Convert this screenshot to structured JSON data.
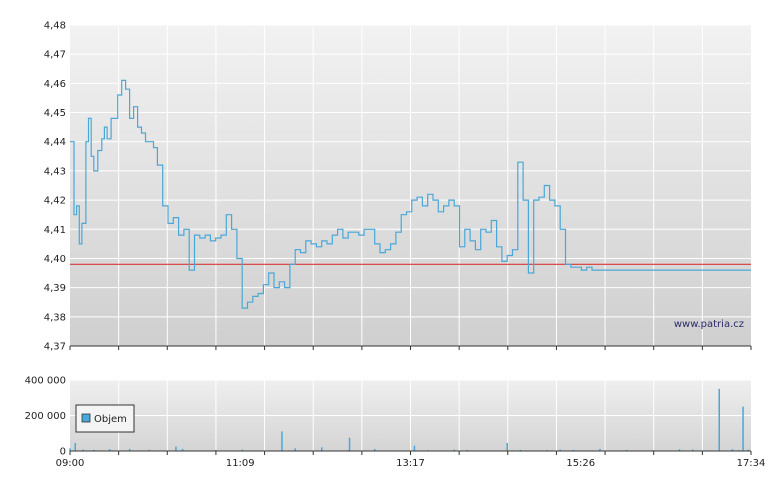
{
  "chart_data": [
    {
      "type": "line",
      "title": "",
      "ylim": [
        4.37,
        4.48
      ],
      "y_ticks": [
        "4,37",
        "4,38",
        "4,39",
        "4,40",
        "4,41",
        "4,42",
        "4,43",
        "4,44",
        "4,45",
        "4,46",
        "4,47",
        "4,48"
      ],
      "x_tick_labels": [
        "09:00",
        "11:09",
        "13:17",
        "15:26",
        "17:34"
      ],
      "reference_line": {
        "value": 4.398,
        "color": "#d83a3a"
      },
      "watermark": "www.patria.cz",
      "series_color": "#4aa8d8",
      "x_minutes_range": [
        0,
        514
      ],
      "series": [
        {
          "x": [
            0,
            3,
            5,
            7,
            9,
            12,
            14,
            16,
            18,
            21,
            24,
            26,
            28,
            31,
            33,
            36,
            39,
            42,
            45,
            48,
            51,
            54,
            57,
            60,
            63,
            66,
            70,
            74,
            78,
            82,
            86,
            90,
            94,
            98,
            102,
            106,
            110,
            114,
            118,
            122,
            126,
            130,
            134,
            138,
            142,
            146,
            150,
            154,
            158,
            162,
            166,
            170,
            174,
            178,
            182,
            186,
            190,
            194,
            198,
            202,
            206,
            210,
            214,
            218,
            222,
            226,
            230,
            234,
            238,
            242,
            246,
            250,
            254,
            258,
            262,
            266,
            270,
            274,
            278,
            282,
            286,
            290,
            294,
            298,
            302,
            306,
            310,
            314,
            318,
            322,
            326,
            330,
            334,
            338,
            342,
            346,
            350,
            354,
            358,
            362,
            366,
            370,
            374,
            378,
            382,
            386,
            390,
            394,
            398,
            402,
            406,
            410,
            414,
            418,
            422,
            426,
            430,
            434,
            438,
            442,
            446,
            450,
            454,
            458,
            462,
            466,
            470,
            474,
            478,
            482,
            486,
            490,
            494,
            498,
            502,
            506,
            510,
            514
          ],
          "y": [
            4.44,
            4.415,
            4.418,
            4.405,
            4.412,
            4.44,
            4.448,
            4.435,
            4.43,
            4.437,
            4.441,
            4.445,
            4.441,
            4.448,
            4.448,
            4.456,
            4.461,
            4.458,
            4.448,
            4.452,
            4.445,
            4.443,
            4.44,
            4.44,
            4.438,
            4.432,
            4.418,
            4.412,
            4.414,
            4.408,
            4.41,
            4.396,
            4.408,
            4.407,
            4.408,
            4.406,
            4.407,
            4.408,
            4.415,
            4.41,
            4.4,
            4.383,
            4.385,
            4.387,
            4.388,
            4.391,
            4.395,
            4.39,
            4.392,
            4.39,
            4.398,
            4.403,
            4.402,
            4.406,
            4.405,
            4.404,
            4.406,
            4.405,
            4.408,
            4.41,
            4.407,
            4.409,
            4.409,
            4.408,
            4.41,
            4.41,
            4.405,
            4.402,
            4.403,
            4.405,
            4.409,
            4.415,
            4.416,
            4.42,
            4.421,
            4.418,
            4.422,
            4.42,
            4.416,
            4.418,
            4.42,
            4.418,
            4.404,
            4.41,
            4.406,
            4.403,
            4.41,
            4.409,
            4.413,
            4.404,
            4.399,
            4.401,
            4.403,
            4.433,
            4.42,
            4.395,
            4.42,
            4.421,
            4.425,
            4.42,
            4.418,
            4.41,
            4.398,
            4.397,
            4.397,
            4.396,
            4.397,
            4.396,
            4.396,
            4.396,
            4.396,
            4.396,
            4.396,
            4.396,
            4.396,
            4.396,
            4.396,
            4.396,
            4.396,
            4.396,
            4.396,
            4.396,
            4.396,
            4.396,
            4.396,
            4.396,
            4.396,
            4.396,
            4.396,
            4.396,
            4.396,
            4.396,
            4.396,
            4.396,
            4.396,
            4.396,
            4.396,
            4.396
          ]
        }
      ]
    },
    {
      "type": "bar",
      "ylim": [
        0,
        400000
      ],
      "y_ticks": [
        "0",
        "200 000",
        "400 000"
      ],
      "legend": "Objem",
      "legend_placement": "bottom-left",
      "series_color": "#4aa8d8",
      "x_minutes_range": [
        0,
        514
      ],
      "series": [
        {
          "name": "Objem",
          "x": [
            0,
            4,
            10,
            18,
            30,
            45,
            60,
            80,
            85,
            110,
            130,
            160,
            170,
            190,
            210,
            211,
            230,
            260,
            270,
            290,
            300,
            330,
            340,
            360,
            370,
            380,
            400,
            420,
            440,
            460,
            470,
            490,
            500,
            505,
            508,
            512
          ],
          "values": [
            15000,
            45000,
            8000,
            6000,
            10000,
            12000,
            7000,
            25000,
            12000,
            6000,
            8000,
            110000,
            15000,
            20000,
            5000,
            75000,
            12000,
            30000,
            5000,
            8000,
            6000,
            45000,
            6000,
            5000,
            8000,
            6000,
            12000,
            6000,
            5000,
            10000,
            8000,
            350000,
            10000,
            5000,
            250000,
            8000
          ]
        }
      ]
    }
  ]
}
